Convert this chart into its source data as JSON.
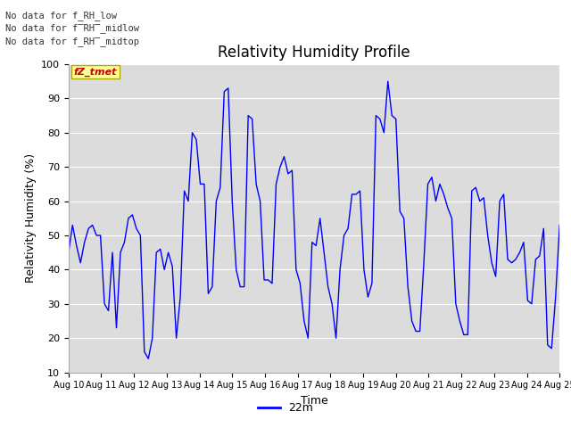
{
  "title": "Relativity Humidity Profile",
  "ylabel": "Relativity Humidity (%)",
  "xlabel": "Time",
  "legend_label": "22m",
  "line_color": "#0000FF",
  "ylim": [
    10,
    100
  ],
  "plot_bg_color": "#dcdcdc",
  "annotations": [
    "No data for f_RH_low",
    "No data for f̅RH̅_midlow",
    "No data for f_RH̅_midtop"
  ],
  "annotation_color": "#333333",
  "legend_box_color": "#ffff99",
  "legend_text_color": "#cc0000",
  "x_tick_labels": [
    "Aug 10",
    "Aug 11",
    "Aug 12",
    "Aug 13",
    "Aug 14",
    "Aug 15",
    "Aug 16",
    "Aug 17",
    "Aug 18",
    "Aug 19",
    "Aug 20",
    "Aug 21",
    "Aug 22",
    "Aug 23",
    "Aug 24",
    "Aug 25"
  ],
  "x_ticks": [
    0,
    24,
    48,
    72,
    96,
    120,
    144,
    168,
    192,
    216,
    240,
    264,
    288,
    312,
    336,
    360
  ],
  "y_data": [
    45,
    53,
    47,
    42,
    48,
    52,
    53,
    50,
    50,
    30,
    28,
    45,
    23,
    45,
    48,
    55,
    56,
    52,
    50,
    16,
    14,
    20,
    45,
    46,
    40,
    45,
    41,
    20,
    32,
    63,
    60,
    80,
    78,
    65,
    65,
    33,
    35,
    60,
    64,
    92,
    93,
    60,
    40,
    35,
    35,
    85,
    84,
    65,
    60,
    37,
    37,
    36,
    65,
    70,
    73,
    68,
    69,
    40,
    36,
    25,
    20,
    48,
    47,
    55,
    45,
    35,
    30,
    20,
    40,
    50,
    52,
    62,
    62,
    63,
    40,
    32,
    36,
    85,
    84,
    80,
    95,
    85,
    84,
    57,
    55,
    35,
    25,
    22,
    22,
    42,
    65,
    67,
    60,
    65,
    62,
    58,
    55,
    30,
    25,
    21,
    21,
    63,
    64,
    60,
    61,
    50,
    42,
    38,
    60,
    62,
    43,
    42,
    43,
    45,
    48,
    31,
    30,
    43,
    44,
    52,
    18,
    17,
    32,
    53
  ]
}
